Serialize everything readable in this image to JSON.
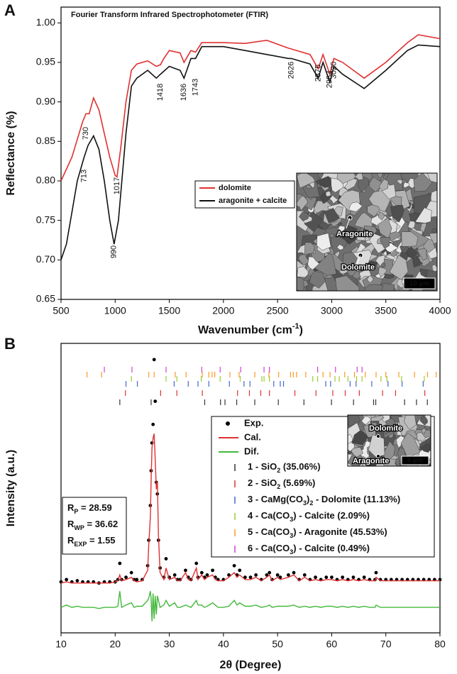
{
  "chart_data": [
    {
      "type": "line",
      "panel": "A",
      "title": "Fourier Transform Infrared Spectrophotometer (FTIR)",
      "x_label": [
        "Wavenumber (cm",
        {
          "sup": "-1"
        },
        ")"
      ],
      "y_label": "Reflectance (%)",
      "xlim": [
        500,
        4000
      ],
      "xticks": [
        500,
        1000,
        1500,
        2000,
        2500,
        3000,
        3500,
        4000
      ],
      "ylim": [
        0.65,
        1.02
      ],
      "yticks": [
        0.65,
        {
          "value": 0.7,
          "label": "0.70"
        },
        0.75,
        {
          "value": 0.8,
          "label": "0.80"
        },
        0.85,
        {
          "value": 0.9,
          "label": "0.90"
        },
        0.95,
        {
          "value": 1,
          "label": "1.00"
        }
      ],
      "series": [
        {
          "name": "dolomite",
          "color": "#e03030",
          "x": [
            500,
            600,
            700,
            730,
            760,
            800,
            850,
            900,
            950,
            1000,
            1017,
            1050,
            1100,
            1150,
            1200,
            1300,
            1380,
            1418,
            1450,
            1500,
            1600,
            1636,
            1700,
            1743,
            1800,
            2000,
            2200,
            2400,
            2600,
            2626,
            2800,
            2875,
            2920,
            2983,
            3020,
            3100,
            3300,
            3500,
            3700,
            3800,
            4000
          ],
          "values": [
            0.8,
            0.83,
            0.875,
            0.885,
            0.885,
            0.905,
            0.89,
            0.86,
            0.83,
            0.807,
            0.805,
            0.84,
            0.9,
            0.94,
            0.948,
            0.952,
            0.945,
            0.947,
            0.955,
            0.965,
            0.962,
            0.95,
            0.965,
            0.963,
            0.975,
            0.975,
            0.974,
            0.978,
            0.968,
            0.967,
            0.96,
            0.942,
            0.96,
            0.935,
            0.955,
            0.95,
            0.93,
            0.95,
            0.975,
            0.985,
            0.98
          ]
        },
        {
          "name": "aragonite + calcite",
          "color": "#111111",
          "x": [
            500,
            550,
            600,
            650,
            713,
            750,
            800,
            850,
            900,
            950,
            990,
            1030,
            1100,
            1150,
            1200,
            1300,
            1380,
            1418,
            1500,
            1600,
            1636,
            1700,
            1743,
            1800,
            2000,
            2200,
            2400,
            2600,
            2626,
            2800,
            2875,
            2920,
            2983,
            3020,
            3100,
            3300,
            3500,
            3700,
            3800,
            4000
          ],
          "values": [
            0.7,
            0.72,
            0.76,
            0.8,
            0.83,
            0.845,
            0.857,
            0.84,
            0.8,
            0.75,
            0.72,
            0.75,
            0.86,
            0.92,
            0.93,
            0.94,
            0.93,
            0.935,
            0.945,
            0.94,
            0.93,
            0.955,
            0.955,
            0.97,
            0.97,
            0.965,
            0.96,
            0.955,
            0.955,
            0.948,
            0.93,
            0.95,
            0.925,
            0.945,
            0.935,
            0.917,
            0.94,
            0.965,
            0.972,
            0.97
          ]
        }
      ],
      "annotations": [
        {
          "x": 730,
          "color": "#e03030"
        },
        {
          "x": 713,
          "color": "#111111"
        },
        {
          "x": 1017,
          "color": "#e03030"
        },
        {
          "x": 990,
          "color": "#111111"
        },
        {
          "x": 1418,
          "color": "#111111"
        },
        {
          "x": 1636,
          "color": "#111111"
        },
        {
          "x": 1743,
          "color": "#111111"
        },
        {
          "x": 2626,
          "color": "#111111"
        },
        {
          "x": 2875,
          "color": "#111111"
        },
        {
          "x": 2983,
          "color": "#111111"
        },
        {
          "x": 3020,
          "color": "#111111"
        }
      ],
      "inset": {
        "labels": [
          "Aragonite",
          "Dolomite"
        ],
        "scale_bar": "10 µm"
      }
    },
    {
      "type": "diffraction",
      "panel": "B",
      "x_label": [
        "2θ (Degree)"
      ],
      "y_label": "Intensity (a.u.)",
      "xlim": [
        10,
        80
      ],
      "xticks": [
        10,
        20,
        30,
        40,
        50,
        60,
        70,
        80
      ],
      "ylim": [
        -20,
        105
      ],
      "x": [
        10,
        11,
        12,
        13,
        14,
        15,
        16,
        17,
        18,
        19,
        20,
        20.5,
        20.86,
        21.2,
        22,
        23,
        23.5,
        24,
        25,
        26,
        26.2,
        26.5,
        26.64,
        26.8,
        27,
        27.2,
        27.4,
        27.6,
        27.8,
        28,
        28.3,
        29,
        29.4,
        30,
        31,
        31.5,
        32,
        33,
        33.5,
        34,
        35,
        35.3,
        36,
        36.5,
        37,
        38,
        38.5,
        39,
        40,
        41,
        42,
        42.5,
        43,
        44,
        45,
        46,
        47,
        48,
        48.5,
        49,
        50,
        50.5,
        52,
        53,
        54,
        55,
        56,
        57,
        58,
        59,
        60,
        61,
        62,
        63,
        64,
        65,
        66,
        67,
        68,
        68.2,
        69,
        70,
        71,
        72,
        73,
        74,
        75,
        76,
        77,
        78,
        79,
        80
      ],
      "series": [
        {
          "name": "Exp.",
          "color": "#000000",
          "marker": "dot",
          "values": [
            2,
            3,
            2,
            2.5,
            2,
            2,
            2,
            1.5,
            2,
            2,
            2,
            3,
            10,
            3,
            4,
            6,
            3,
            3,
            3,
            9,
            20,
            35,
            50,
            62,
            70,
            98,
            80,
            45,
            40,
            20,
            8,
            4,
            12,
            4,
            5,
            3,
            3,
            7,
            4,
            3,
            10,
            4,
            6,
            4,
            5,
            7,
            4,
            3,
            3,
            5,
            9,
            5,
            7,
            4,
            4,
            5,
            3,
            5,
            6,
            3,
            5,
            4,
            5,
            6,
            3,
            5,
            3,
            4,
            3,
            4,
            4,
            3,
            4,
            3,
            4,
            3,
            4,
            3,
            3,
            6,
            3,
            3,
            3,
            3,
            3,
            3,
            3,
            3,
            3,
            3,
            3,
            3
          ]
        },
        {
          "name": "Cal.",
          "color": "#e03030",
          "values": [
            1.5,
            2,
            1.5,
            1.5,
            1.5,
            1.5,
            1.5,
            1.5,
            1.5,
            1.5,
            2,
            2.5,
            5,
            2.5,
            3,
            4,
            2.5,
            2,
            2.5,
            7,
            18,
            30,
            45,
            60,
            64,
            66,
            55,
            42,
            45,
            22,
            6,
            3,
            8,
            3,
            4,
            2.5,
            2.5,
            6,
            3,
            2.5,
            8,
            3,
            5,
            3,
            4,
            5,
            3,
            2.5,
            2.5,
            4,
            6,
            4,
            5,
            3,
            3,
            4,
            2.5,
            4,
            5,
            2.5,
            4,
            3,
            4,
            5,
            2.5,
            4,
            2.5,
            3,
            2.5,
            3,
            3,
            2.5,
            3,
            2.5,
            3,
            2.5,
            3,
            2.5,
            2.5,
            4,
            2.5,
            2.5,
            2.5,
            2.5,
            2.5,
            2.5,
            2.5,
            2.5,
            2.5,
            2.5,
            2.5,
            2.5
          ]
        },
        {
          "name": "Dif.",
          "color": "#44b83c",
          "values": [
            -9,
            -8,
            -9,
            -8.5,
            -9,
            -9,
            -9,
            -9.5,
            -9,
            -9,
            -9,
            -8.5,
            -2,
            -9,
            -8,
            -7,
            -9,
            -8.5,
            -8.5,
            -6,
            -5,
            -2,
            -5,
            -15,
            -3,
            -14,
            -4,
            -12,
            -4,
            -6,
            -9,
            -8,
            -6,
            -8.5,
            -7,
            -9,
            -9,
            -8,
            -8.5,
            -9,
            -6,
            -8,
            -8,
            -9,
            -8.5,
            -7,
            -8,
            -9,
            -9,
            -8.5,
            -6,
            -8,
            -7,
            -8.5,
            -8.5,
            -8,
            -9,
            -8.5,
            -8,
            -9,
            -8.5,
            -8.5,
            -8.5,
            -8,
            -9,
            -8.5,
            -9,
            -8.5,
            -9,
            -8.5,
            -8.5,
            -9,
            -8.5,
            -9,
            -8.5,
            -9,
            -8.5,
            -9,
            -9,
            -8,
            -9,
            -9,
            -9,
            -9,
            -9,
            -9,
            -9,
            -9,
            -9,
            -9,
            -9,
            -9
          ]
        }
      ],
      "phases": [
        {
          "name": [
            "1 - SiO",
            {
              "sub": "2"
            },
            " (35.06%)"
          ],
          "color": "#333333",
          "positions": [
            20.86,
            26.64,
            36.54,
            39.46,
            40.29,
            42.45,
            45.79,
            50.14,
            54.87,
            59.96,
            64.03,
            67.74,
            68.14,
            73.46,
            75.66,
            77.67
          ]
        },
        {
          "name": [
            "2 - SiO",
            {
              "sub": "2"
            },
            " (5.69%)"
          ],
          "color": "#e03030",
          "positions": [
            21.9,
            28.4,
            31.4,
            36.1,
            42.6,
            44.8,
            46.9,
            48.5,
            53.2,
            57.1,
            60.2,
            62.5,
            65.1,
            69.4,
            71.8,
            77.2
          ]
        },
        {
          "name": [
            "3 - CaMg(CO",
            {
              "sub": "3"
            },
            ")",
            {
              "sub": "2"
            },
            " - Dolomite (11.13%)"
          ],
          "color": "#4466cc",
          "positions": [
            22,
            24.1,
            30.9,
            33.5,
            35.3,
            37.3,
            41.1,
            43.8,
            44.9,
            49.3,
            50.5,
            51.1,
            58.9,
            59.8,
            63.4,
            64.5,
            67.4,
            70.4,
            73,
            76.9
          ]
        },
        {
          "name": [
            "4 - Ca(CO",
            {
              "sub": "3"
            },
            ") - Calcite (2.09%)"
          ],
          "color": "#99cc33",
          "positions": [
            23,
            29.4,
            31.4,
            35.9,
            39.4,
            43.1,
            47.1,
            47.5,
            48.5,
            56.5,
            57.4,
            60.6,
            61.4,
            63,
            64.6,
            65.6,
            69.1,
            70.2,
            72.9,
            77.1
          ]
        },
        {
          "name": [
            "5 - Ca(CO",
            {
              "sub": "3"
            },
            ") - Aragonite (45.53%)"
          ],
          "color": "#ff9922",
          "positions": [
            14.8,
            17.5,
            26.2,
            27.2,
            31.1,
            33.1,
            36.1,
            37.3,
            37.9,
            38.4,
            41.2,
            42.9,
            45.8,
            48.4,
            50.2,
            52.4,
            52.9,
            53.5,
            55.2,
            58.4,
            59.7,
            62.4,
            64.2,
            66.2,
            68.2,
            70,
            72.4,
            75.3,
            77.7,
            79.3
          ]
        },
        {
          "name": [
            "6 - Ca(CO",
            {
              "sub": "3"
            },
            ") - Calcite (0.49%)"
          ],
          "color": "#cc44cc",
          "positions": [
            18,
            23.1,
            29.4,
            36,
            39.4,
            43.2,
            47.5,
            48.5,
            57.4,
            60.7,
            64.7,
            65.6
          ]
        }
      ],
      "stats": [
        [
          "R",
          {
            "sub": "P"
          },
          " = 28.59"
        ],
        [
          "R",
          {
            "sub": "WP"
          },
          " = 36.62"
        ],
        [
          "R",
          {
            "sub": "EXP"
          },
          " = 1.55"
        ]
      ],
      "inset": {
        "labels": [
          "Dolomite",
          "Aragonite"
        ],
        "scale_bar": "5 µm"
      }
    }
  ]
}
